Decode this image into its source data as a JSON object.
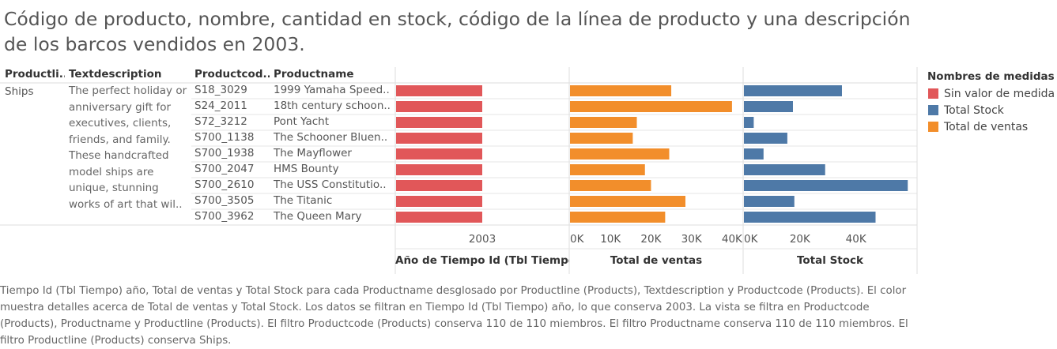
{
  "title": "Código de producto, nombre, cantidad en stock, código de la línea de producto y una descripción de los barcos vendidos en 2003.",
  "table": {
    "headers": {
      "productline": "Productli..",
      "textdescription": "Textdescription",
      "productcode": "Productcod..",
      "productname": "Productname"
    },
    "productline_value": "Ships",
    "description_lines": [
      "The perfect holiday or",
      "anniversary gift for",
      "executives, clients,",
      "friends, and family.",
      "These handcrafted",
      "model ships are",
      "unique, stunning",
      "works of art that wil.."
    ],
    "rows": [
      {
        "code": "S18_3029",
        "name": "1999 Yamaha Speed.."
      },
      {
        "code": "S24_2011",
        "name": "18th century schoon.."
      },
      {
        "code": "S72_3212",
        "name": "Pont Yacht"
      },
      {
        "code": "S700_1138",
        "name": "The Schooner Bluen.."
      },
      {
        "code": "S700_1938",
        "name": "The Mayflower"
      },
      {
        "code": "S700_2047",
        "name": "HMS Bounty"
      },
      {
        "code": "S700_2610",
        "name": "The USS Constitutio.."
      },
      {
        "code": "S700_3505",
        "name": "The Titanic"
      },
      {
        "code": "S700_3962",
        "name": "The Queen Mary"
      }
    ]
  },
  "chart_data": {
    "type": "bar",
    "orientation": "horizontal",
    "categories": [
      "1999 Yamaha Speed..",
      "18th century schoon..",
      "Pont Yacht",
      "The Schooner Bluen..",
      "The Mayflower",
      "HMS Bounty",
      "The USS Constitutio..",
      "The Titanic",
      "The Queen Mary"
    ],
    "panels": [
      {
        "name": "year",
        "axis_title": "Año de Tiempo Id (Tbl Tiempo)",
        "tick_labels": [
          "2003"
        ],
        "color": "#e15759",
        "values": [
          1,
          1,
          1,
          1,
          1,
          1,
          1,
          1,
          1
        ],
        "xlim": [
          0,
          1
        ]
      },
      {
        "name": "ventas",
        "axis_title": "Total de ventas",
        "ticks": [
          0,
          10000,
          20000,
          30000,
          40000
        ],
        "tick_labels": [
          "0K",
          "10K",
          "20K",
          "30K",
          "40K"
        ],
        "color": "#f28e2b",
        "values": [
          25000,
          40000,
          16500,
          15500,
          24500,
          18500,
          20000,
          28500,
          23500
        ],
        "xlim": [
          0,
          40800
        ]
      },
      {
        "name": "stock",
        "axis_title": "Total Stock",
        "ticks": [
          0,
          20000,
          40000
        ],
        "tick_labels": [
          "0K",
          "20K",
          "40K"
        ],
        "color": "#4e79a7",
        "values": [
          35000,
          17500,
          3500,
          15500,
          7000,
          29000,
          58500,
          18000,
          47000
        ],
        "xlim": [
          0,
          59000
        ]
      }
    ]
  },
  "legend": {
    "title": "Nombres de medidas",
    "items": [
      {
        "label": "Sin valor de medida",
        "color": "#e15759"
      },
      {
        "label": "Total Stock",
        "color": "#4e79a7"
      },
      {
        "label": "Total de ventas",
        "color": "#f28e2b"
      }
    ]
  },
  "caption": "Tiempo Id (Tbl Tiempo) año, Total de ventas y Total Stock para cada Productname desglosado por Productline (Products), Textdescription y Productcode (Products). El color muestra detalles acerca de Total de ventas y Total Stock. Los datos se filtran en Tiempo Id (Tbl Tiempo) año, lo que conserva 2003. La vista se filtra en Productcode (Products), Productname y Productline (Products). El filtro Productcode (Products) conserva 110 de 110 miembros. El filtro Productname conserva 110 de 110 miembros. El filtro Productline (Products) conserva Ships."
}
